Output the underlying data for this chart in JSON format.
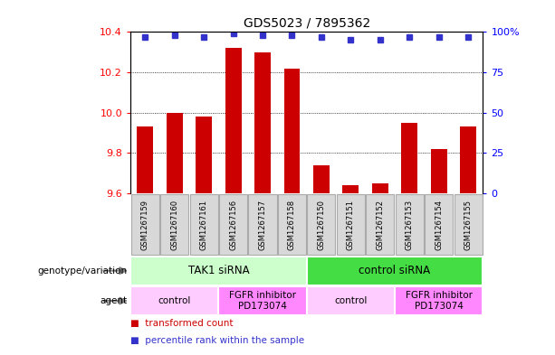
{
  "title": "GDS5023 / 7895362",
  "samples": [
    "GSM1267159",
    "GSM1267160",
    "GSM1267161",
    "GSM1267156",
    "GSM1267157",
    "GSM1267158",
    "GSM1267150",
    "GSM1267151",
    "GSM1267152",
    "GSM1267153",
    "GSM1267154",
    "GSM1267155"
  ],
  "bar_values": [
    9.93,
    10.0,
    9.98,
    10.32,
    10.3,
    10.22,
    9.74,
    9.64,
    9.65,
    9.95,
    9.82,
    9.93
  ],
  "dot_values": [
    97,
    98,
    97,
    99,
    98,
    98,
    97,
    95,
    95,
    97,
    97,
    97
  ],
  "bar_color": "#cc0000",
  "dot_color": "#3333cc",
  "ylim_left": [
    9.6,
    10.4
  ],
  "ylim_right": [
    0,
    100
  ],
  "yticks_left": [
    9.6,
    9.8,
    10.0,
    10.2,
    10.4
  ],
  "yticks_right": [
    0,
    25,
    50,
    75,
    100
  ],
  "bar_baseline": 9.6,
  "genotype_groups": [
    {
      "label": "TAK1 siRNA",
      "start": 0,
      "end": 6,
      "color": "#ccffcc"
    },
    {
      "label": "control siRNA",
      "start": 6,
      "end": 12,
      "color": "#44dd44"
    }
  ],
  "agent_groups": [
    {
      "label": "control",
      "start": 0,
      "end": 3,
      "color": "#ffccff"
    },
    {
      "label": "FGFR inhibitor\nPD173074",
      "start": 3,
      "end": 6,
      "color": "#ff88ff"
    },
    {
      "label": "control",
      "start": 6,
      "end": 9,
      "color": "#ffccff"
    },
    {
      "label": "FGFR inhibitor\nPD173074",
      "start": 9,
      "end": 12,
      "color": "#ff88ff"
    }
  ],
  "legend_items": [
    {
      "color": "#cc0000",
      "label": "transformed count"
    },
    {
      "color": "#3333cc",
      "label": "percentile rank within the sample"
    }
  ],
  "sample_box_color": "#d8d8d8",
  "sample_box_edge": "#aaaaaa"
}
